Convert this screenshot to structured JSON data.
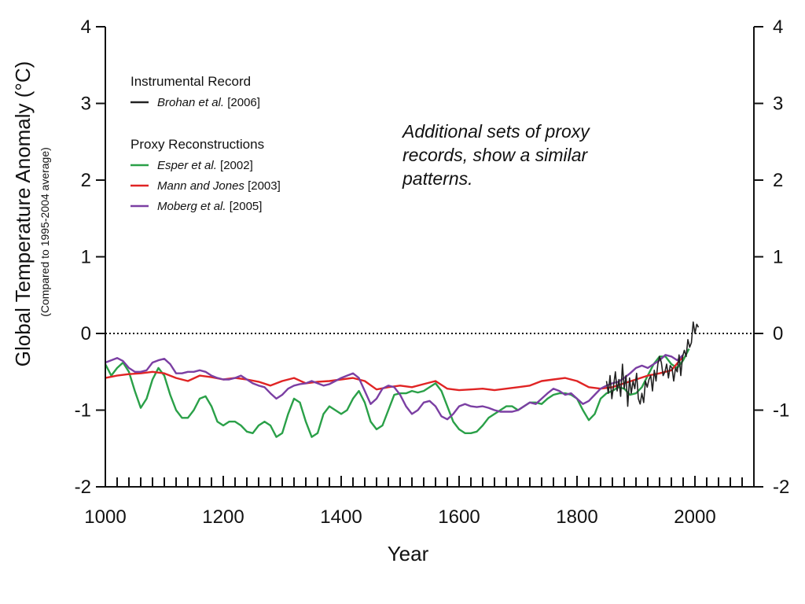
{
  "chart_data": {
    "type": "line",
    "xlabel": "Year",
    "ylabel": "Global Temperature Anomaly (°C)",
    "ylabel_sub": "(Compared to 1995-2004 average)",
    "xlim": [
      1000,
      2100
    ],
    "ylim": [
      -2,
      4
    ],
    "x_ticks": [
      1000,
      1200,
      1400,
      1600,
      1800,
      2000
    ],
    "y_ticks": [
      -2,
      -1,
      0,
      1,
      2,
      3,
      4
    ],
    "reference_line": 0,
    "annotation": "Additional sets of proxy records, show a similar patterns.",
    "legend": {
      "groups": [
        {
          "title": "Instrumental Record",
          "entries": [
            {
              "name": "Brohan et al.",
              "year": "[2006]",
              "color": "#222222"
            }
          ]
        },
        {
          "title": "Proxy Reconstructions",
          "entries": [
            {
              "name": "Esper et al.",
              "year": "[2002]",
              "color": "#2aa048"
            },
            {
              "name": "Mann and Jones",
              "year": "[2003]",
              "color": "#e02424"
            },
            {
              "name": "Moberg et al.",
              "year": "[2005]",
              "color": "#7b3fa3"
            }
          ]
        }
      ]
    },
    "series": [
      {
        "name": "Esper et al. [2002]",
        "color": "#2aa048",
        "x": [
          1000,
          1010,
          1020,
          1030,
          1040,
          1050,
          1060,
          1070,
          1080,
          1090,
          1100,
          1110,
          1120,
          1130,
          1140,
          1150,
          1160,
          1170,
          1180,
          1190,
          1200,
          1210,
          1220,
          1230,
          1240,
          1250,
          1260,
          1270,
          1280,
          1290,
          1300,
          1310,
          1320,
          1330,
          1340,
          1350,
          1360,
          1370,
          1380,
          1390,
          1400,
          1410,
          1420,
          1430,
          1440,
          1450,
          1460,
          1470,
          1480,
          1490,
          1500,
          1510,
          1520,
          1530,
          1540,
          1550,
          1560,
          1570,
          1580,
          1590,
          1600,
          1610,
          1620,
          1630,
          1640,
          1650,
          1660,
          1670,
          1680,
          1690,
          1700,
          1710,
          1720,
          1730,
          1740,
          1750,
          1760,
          1770,
          1780,
          1790,
          1800,
          1810,
          1820,
          1830,
          1840,
          1850,
          1860,
          1870,
          1880,
          1890,
          1900,
          1910,
          1920,
          1930,
          1940,
          1950,
          1960,
          1970,
          1980,
          1990
        ],
        "values": [
          -0.4,
          -0.55,
          -0.45,
          -0.38,
          -0.5,
          -0.75,
          -0.97,
          -0.85,
          -0.6,
          -0.45,
          -0.55,
          -0.8,
          -1.0,
          -1.1,
          -1.1,
          -1.0,
          -0.85,
          -0.82,
          -0.95,
          -1.15,
          -1.2,
          -1.15,
          -1.15,
          -1.2,
          -1.28,
          -1.3,
          -1.2,
          -1.15,
          -1.2,
          -1.35,
          -1.3,
          -1.05,
          -0.85,
          -0.9,
          -1.15,
          -1.35,
          -1.3,
          -1.05,
          -0.95,
          -1.0,
          -1.05,
          -1.0,
          -0.85,
          -0.75,
          -0.9,
          -1.15,
          -1.25,
          -1.2,
          -1.0,
          -0.8,
          -0.78,
          -0.78,
          -0.75,
          -0.77,
          -0.75,
          -0.7,
          -0.65,
          -0.75,
          -0.95,
          -1.15,
          -1.25,
          -1.3,
          -1.3,
          -1.28,
          -1.2,
          -1.1,
          -1.05,
          -1.0,
          -0.95,
          -0.95,
          -1.0,
          -0.95,
          -0.9,
          -0.9,
          -0.92,
          -0.85,
          -0.8,
          -0.78,
          -0.78,
          -0.8,
          -0.85,
          -1.0,
          -1.13,
          -1.05,
          -0.85,
          -0.78,
          -0.75,
          -0.7,
          -0.72,
          -0.8,
          -0.78,
          -0.7,
          -0.55,
          -0.4,
          -0.3,
          -0.3,
          -0.4,
          -0.45,
          -0.35,
          -0.2
        ]
      },
      {
        "name": "Mann and Jones [2003]",
        "color": "#e02424",
        "x": [
          1000,
          1020,
          1040,
          1060,
          1080,
          1100,
          1120,
          1140,
          1160,
          1180,
          1200,
          1220,
          1240,
          1260,
          1280,
          1300,
          1320,
          1340,
          1360,
          1380,
          1400,
          1420,
          1440,
          1460,
          1480,
          1500,
          1520,
          1540,
          1560,
          1580,
          1600,
          1620,
          1640,
          1660,
          1680,
          1700,
          1720,
          1740,
          1760,
          1780,
          1800,
          1820,
          1840,
          1860,
          1880,
          1900,
          1920,
          1940,
          1960,
          1980
        ],
        "values": [
          -0.58,
          -0.55,
          -0.53,
          -0.52,
          -0.5,
          -0.52,
          -0.58,
          -0.62,
          -0.55,
          -0.57,
          -0.6,
          -0.58,
          -0.6,
          -0.63,
          -0.68,
          -0.62,
          -0.58,
          -0.65,
          -0.63,
          -0.62,
          -0.6,
          -0.58,
          -0.62,
          -0.73,
          -0.7,
          -0.68,
          -0.7,
          -0.66,
          -0.62,
          -0.72,
          -0.74,
          -0.73,
          -0.72,
          -0.74,
          -0.72,
          -0.7,
          -0.68,
          -0.62,
          -0.6,
          -0.58,
          -0.62,
          -0.7,
          -0.72,
          -0.7,
          -0.65,
          -0.6,
          -0.55,
          -0.52,
          -0.48,
          -0.3
        ]
      },
      {
        "name": "Moberg et al. [2005]",
        "color": "#7b3fa3",
        "x": [
          1000,
          1010,
          1020,
          1030,
          1040,
          1050,
          1060,
          1070,
          1080,
          1090,
          1100,
          1110,
          1120,
          1130,
          1140,
          1150,
          1160,
          1170,
          1180,
          1190,
          1200,
          1210,
          1220,
          1230,
          1240,
          1250,
          1260,
          1270,
          1280,
          1290,
          1300,
          1310,
          1320,
          1330,
          1340,
          1350,
          1360,
          1370,
          1380,
          1390,
          1400,
          1410,
          1420,
          1430,
          1440,
          1450,
          1460,
          1470,
          1480,
          1490,
          1500,
          1510,
          1520,
          1530,
          1540,
          1550,
          1560,
          1570,
          1580,
          1590,
          1600,
          1610,
          1620,
          1630,
          1640,
          1650,
          1660,
          1670,
          1680,
          1690,
          1700,
          1710,
          1720,
          1730,
          1740,
          1750,
          1760,
          1770,
          1780,
          1790,
          1800,
          1810,
          1820,
          1830,
          1840,
          1850,
          1860,
          1870,
          1880,
          1890,
          1900,
          1910,
          1920,
          1930,
          1940,
          1950,
          1960,
          1970,
          1980
        ],
        "values": [
          -0.38,
          -0.35,
          -0.32,
          -0.36,
          -0.45,
          -0.5,
          -0.5,
          -0.48,
          -0.38,
          -0.35,
          -0.33,
          -0.4,
          -0.52,
          -0.52,
          -0.5,
          -0.5,
          -0.48,
          -0.5,
          -0.55,
          -0.58,
          -0.6,
          -0.6,
          -0.58,
          -0.55,
          -0.6,
          -0.65,
          -0.68,
          -0.7,
          -0.78,
          -0.85,
          -0.8,
          -0.72,
          -0.68,
          -0.66,
          -0.65,
          -0.62,
          -0.65,
          -0.68,
          -0.66,
          -0.62,
          -0.58,
          -0.55,
          -0.52,
          -0.58,
          -0.75,
          -0.92,
          -0.85,
          -0.72,
          -0.68,
          -0.7,
          -0.8,
          -0.95,
          -1.05,
          -1.0,
          -0.9,
          -0.88,
          -0.95,
          -1.08,
          -1.12,
          -1.05,
          -0.95,
          -0.92,
          -0.95,
          -0.96,
          -0.95,
          -0.97,
          -1.0,
          -1.02,
          -1.02,
          -1.02,
          -1.0,
          -0.95,
          -0.9,
          -0.92,
          -0.85,
          -0.78,
          -0.72,
          -0.75,
          -0.8,
          -0.78,
          -0.85,
          -0.92,
          -0.88,
          -0.8,
          -0.72,
          -0.68,
          -0.65,
          -0.63,
          -0.58,
          -0.52,
          -0.45,
          -0.42,
          -0.45,
          -0.4,
          -0.35,
          -0.28,
          -0.3,
          -0.35,
          -0.28
        ]
      },
      {
        "name": "Brohan et al. [2006]",
        "color": "#222222",
        "x": [
          1850,
          1853,
          1856,
          1859,
          1862,
          1865,
          1868,
          1871,
          1874,
          1877,
          1880,
          1883,
          1886,
          1889,
          1892,
          1895,
          1898,
          1901,
          1904,
          1907,
          1910,
          1913,
          1916,
          1919,
          1922,
          1925,
          1928,
          1931,
          1934,
          1937,
          1940,
          1943,
          1946,
          1949,
          1952,
          1955,
          1958,
          1961,
          1964,
          1967,
          1970,
          1973,
          1976,
          1979,
          1982,
          1985,
          1988,
          1991,
          1994,
          1997,
          2000,
          2003,
          2006
        ],
        "values": [
          -0.62,
          -0.78,
          -0.55,
          -0.85,
          -0.68,
          -0.5,
          -0.75,
          -0.6,
          -0.82,
          -0.4,
          -0.72,
          -0.55,
          -0.95,
          -0.58,
          -0.78,
          -0.62,
          -0.72,
          -0.52,
          -0.85,
          -0.92,
          -0.78,
          -0.9,
          -0.62,
          -0.7,
          -0.6,
          -0.55,
          -0.75,
          -0.48,
          -0.62,
          -0.4,
          -0.3,
          -0.38,
          -0.55,
          -0.5,
          -0.4,
          -0.58,
          -0.42,
          -0.45,
          -0.62,
          -0.45,
          -0.5,
          -0.28,
          -0.55,
          -0.3,
          -0.22,
          -0.3,
          -0.08,
          -0.18,
          -0.12,
          0.15,
          0.0,
          0.12,
          0.08
        ]
      }
    ]
  }
}
